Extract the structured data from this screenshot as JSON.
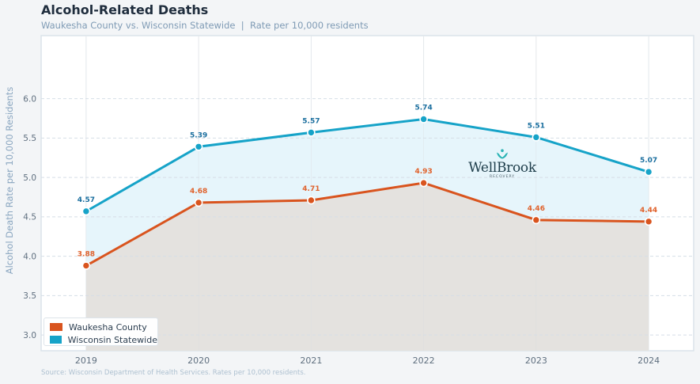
{
  "header": {
    "title": "Alcohol-Related Deaths",
    "subtitle": "Waukesha County vs. Wisconsin Statewide  |  Rate per 10,000 residents"
  },
  "footer": {
    "source": "Source: Wisconsin Department of Health Services. Rates per 10,000 residents."
  },
  "watermark": {
    "icon": "lotus-icon",
    "brand": "WellBrook",
    "tagline": "RECOVERY",
    "icon_color": "#2ab3b5"
  },
  "colors": {
    "page_background": "#f3f5f7",
    "plot_background": "#ffffff",
    "grid": "#d5dee6"
  },
  "chart_data": {
    "type": "line",
    "title": "Alcohol-Related Deaths",
    "subtitle": "Waukesha County vs. Wisconsin Statewide  |  Rate per 10,000 residents",
    "xlabel": "",
    "ylabel": "Alcohol Death Rate per 10,000 Residents",
    "categories": [
      "2019",
      "2020",
      "2021",
      "2022",
      "2023",
      "2024"
    ],
    "xlim": [
      2018.6,
      2024.4
    ],
    "ylim": [
      2.8,
      6.8
    ],
    "yticks": [
      "3.0",
      "3.5",
      "4.0",
      "4.5",
      "5.0",
      "5.5",
      "6.0"
    ],
    "grid": true,
    "series": [
      {
        "name": "Waukesha County",
        "values": [
          3.88,
          4.68,
          4.71,
          4.93,
          4.46,
          4.44
        ],
        "labels": [
          "3.88",
          "4.68",
          "4.71",
          "4.93",
          "4.46",
          "4.44"
        ],
        "color": "#d9541e",
        "label_color": "#e0622c",
        "fill": "#e4e2df"
      },
      {
        "name": "Wisconsin Statewide",
        "values": [
          4.57,
          5.39,
          5.57,
          5.74,
          5.51,
          5.07
        ],
        "labels": [
          "4.57",
          "5.39",
          "5.57",
          "5.74",
          "5.51",
          "5.07"
        ],
        "color": "#16a3c8",
        "label_color": "#1a6e9e",
        "fill": "#e6f5fb"
      }
    ],
    "legend": {
      "position": "bottom-left",
      "entries": [
        "Waukesha County",
        "Wisconsin Statewide"
      ]
    },
    "source": "Source: Wisconsin Department of Health Services. Rates per 10,000 residents."
  }
}
